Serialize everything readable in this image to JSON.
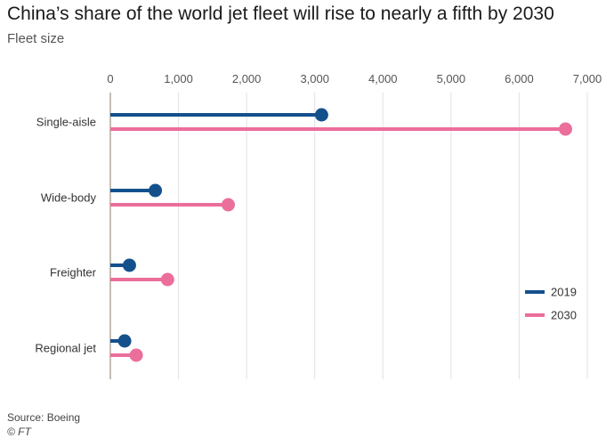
{
  "title": "China’s share of the world jet fleet will rise to nearly a fifth by 2030",
  "subtitle": "Fleet size",
  "source": "Source: Boeing",
  "credit": "© FT",
  "colors": {
    "series_2019": "#14508c",
    "series_2030": "#eb6e9b",
    "grid": "#e1e1e1",
    "axis": "#b0a79a"
  },
  "chart_data": {
    "type": "bar",
    "orientation": "horizontal",
    "style": "lollipop",
    "categories": [
      "Single-aisle",
      "Wide-body",
      "Freighter",
      "Regional jet"
    ],
    "series": [
      {
        "name": "2019",
        "values": [
          3100,
          660,
          280,
          210
        ]
      },
      {
        "name": "2030",
        "values": [
          6680,
          1730,
          840,
          380
        ]
      }
    ],
    "xticks": [
      "0",
      "1,000",
      "2,000",
      "3,000",
      "4,000",
      "5,000",
      "6,000",
      "7,000"
    ],
    "xlim": [
      0,
      7000
    ],
    "grid": true,
    "legend": "right",
    "xlabel": "",
    "ylabel": ""
  }
}
